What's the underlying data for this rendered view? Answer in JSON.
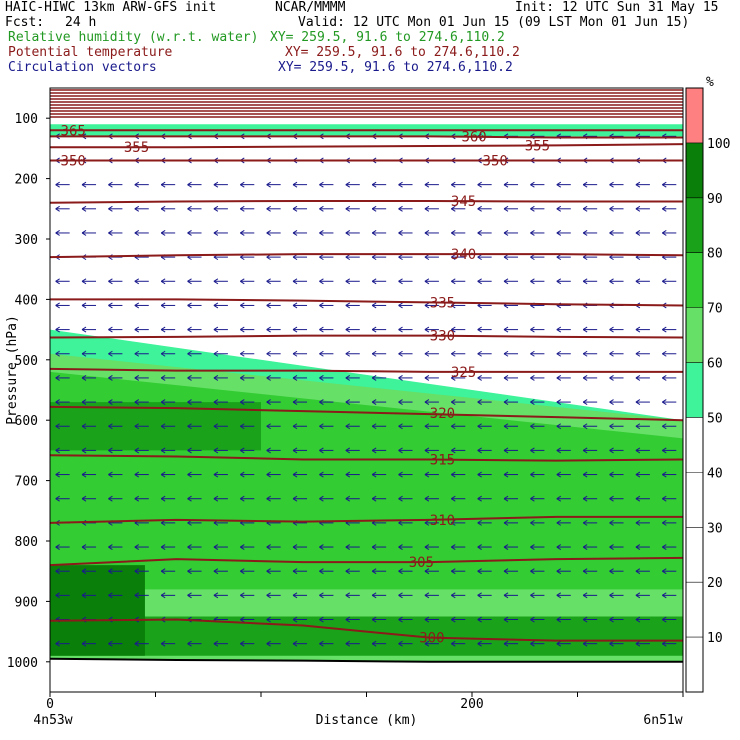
{
  "header": {
    "model": "HAIC-HIWC 13km ARW-GFS init",
    "center": "NCAR/MMMM",
    "init": "Init: 12 UTC Sun 31 May 15",
    "fcst_label": "Fcst:",
    "fcst_value": "24 h",
    "valid": "Valid: 12 UTC Mon 01 Jun 15 (09 LST Mon 01 Jun 15)",
    "fields": [
      {
        "name": "Relative humidity (w.r.t. water)",
        "xy": "XY= 259.5, 91.6 to 274.6,110.2",
        "color": "#229922"
      },
      {
        "name": "Potential temperature",
        "xy": "XY= 259.5, 91.6 to 274.6,110.2",
        "color": "#8b1a1a"
      },
      {
        "name": "Circulation vectors",
        "xy": "XY= 259.5, 91.6 to 274.6,110.2",
        "color": "#1a1a8c"
      }
    ]
  },
  "chart_data": {
    "type": "heatmap",
    "title": "HAIC-HIWC 13km ARW-GFS init",
    "xlabel": "Distance (km)",
    "ylabel": "Pressure (hPa)",
    "x_ticks": [
      0,
      200
    ],
    "x_end_labels": {
      "left": "4n53w",
      "right": "6n51w"
    },
    "xlim": [
      0,
      300
    ],
    "y_ticks": [
      100,
      200,
      300,
      400,
      500,
      600,
      700,
      800,
      900,
      1000
    ],
    "ylim": [
      1050,
      50
    ],
    "colorbar": {
      "unit": "%",
      "levels": [
        10,
        20,
        30,
        40,
        50,
        60,
        70,
        80,
        90,
        100
      ],
      "bands": [
        {
          "range": [
            0,
            50
          ],
          "color": "#ffffff"
        },
        {
          "range": [
            50,
            60
          ],
          "color": "#3ef39a"
        },
        {
          "range": [
            60,
            70
          ],
          "color": "#66e066"
        },
        {
          "range": [
            70,
            80
          ],
          "color": "#33cc33"
        },
        {
          "range": [
            80,
            90
          ],
          "color": "#1aa31a"
        },
        {
          "range": [
            90,
            100
          ],
          "color": "#0a800a"
        },
        {
          "range": [
            100,
            110
          ],
          "color": "#ff8080"
        }
      ]
    },
    "rh_regions": [
      {
        "rh": 80,
        "x": [
          0,
          300
        ],
        "p_top": [
          925,
          925
        ],
        "p_bot": [
          990,
          990
        ]
      },
      {
        "rh": 90,
        "x": [
          0,
          45
        ],
        "p_top": [
          840,
          840
        ],
        "p_bot": [
          990,
          990
        ]
      },
      {
        "rh": 50,
        "x": [
          0,
          300
        ],
        "p_top": [
          450,
          600
        ],
        "p_bot": [
          1050,
          1050
        ]
      },
      {
        "rh": 60,
        "x": [
          0,
          300
        ],
        "p_top": [
          490,
          600
        ],
        "p_bot": [
          1000,
          1000
        ]
      },
      {
        "rh": 70,
        "x": [
          0,
          300
        ],
        "p_top": [
          520,
          630
        ],
        "p_bot": [
          880,
          880
        ]
      },
      {
        "rh": 80,
        "x": [
          0,
          100
        ],
        "p_top": [
          570,
          570
        ],
        "p_bot": [
          650,
          650
        ]
      },
      {
        "rh": 50,
        "x": [
          0,
          300
        ],
        "p_top": [
          110,
          110
        ],
        "p_bot": [
          130,
          130
        ]
      }
    ],
    "theta_contours": [
      {
        "value": 300,
        "label": "300",
        "p": [
          932,
          930,
          940,
          960,
          965,
          965
        ]
      },
      {
        "value": 305,
        "label": "305",
        "p": [
          840,
          830,
          835,
          835,
          830,
          828
        ]
      },
      {
        "value": 310,
        "label": "310",
        "p": [
          770,
          765,
          768,
          765,
          760,
          760
        ]
      },
      {
        "value": 315,
        "label": "315",
        "p": [
          658,
          660,
          665,
          665,
          667,
          665
        ]
      },
      {
        "value": 320,
        "label": "320",
        "p": [
          578,
          580,
          585,
          590,
          595,
          600
        ]
      },
      {
        "value": 325,
        "label": "325",
        "p": [
          515,
          518,
          518,
          520,
          520,
          520
        ]
      },
      {
        "value": 330,
        "label": "330",
        "p": [
          463,
          462,
          460,
          460,
          462,
          463
        ]
      },
      {
        "value": 335,
        "label": "335",
        "p": [
          400,
          400,
          402,
          405,
          408,
          410
        ]
      },
      {
        "value": 340,
        "label": "340",
        "p": [
          330,
          327,
          325,
          325,
          325,
          327
        ]
      },
      {
        "value": 345,
        "label": "345",
        "p": [
          240,
          238,
          237,
          237,
          238,
          238
        ]
      },
      {
        "value": 350,
        "label": "350",
        "p": [
          170,
          170,
          170,
          170,
          170,
          170
        ]
      },
      {
        "value": 355,
        "label": "355",
        "p": [
          148,
          148,
          147,
          146,
          145,
          143
        ]
      },
      {
        "value": 360,
        "label": "360",
        "p": [
          130,
          130,
          130,
          130,
          132,
          132
        ]
      },
      {
        "value": 365,
        "label": "365",
        "p": [
          120,
          120,
          120,
          120,
          120,
          120
        ]
      }
    ],
    "theta_labels": [
      {
        "label": "365",
        "x": 5,
        "p": 120
      },
      {
        "label": "360",
        "x": 195,
        "p": 130
      },
      {
        "label": "355",
        "x": 35,
        "p": 148
      },
      {
        "label": "355",
        "x": 225,
        "p": 145
      },
      {
        "label": "350",
        "x": 5,
        "p": 170
      },
      {
        "label": "350",
        "x": 205,
        "p": 170
      },
      {
        "label": "345",
        "x": 190,
        "p": 237
      },
      {
        "label": "340",
        "x": 190,
        "p": 325
      },
      {
        "label": "335",
        "x": 180,
        "p": 405
      },
      {
        "label": "330",
        "x": 180,
        "p": 460
      },
      {
        "label": "325",
        "x": 190,
        "p": 520
      },
      {
        "label": "320",
        "x": 180,
        "p": 588
      },
      {
        "label": "315",
        "x": 180,
        "p": 665
      },
      {
        "label": "310",
        "x": 180,
        "p": 765
      },
      {
        "label": "305",
        "x": 170,
        "p": 835
      },
      {
        "label": "300",
        "x": 175,
        "p": 960
      }
    ],
    "vectors": {
      "direction": "westward",
      "x_step_km": 12.5,
      "p_levels": [
        130,
        170,
        210,
        250,
        290,
        330,
        370,
        410,
        450,
        490,
        530,
        570,
        610,
        650,
        690,
        730,
        770,
        810,
        850,
        890,
        930,
        970
      ]
    },
    "terrain_p": [
      995,
      997,
      998,
      1000,
      1000,
      1000
    ]
  }
}
